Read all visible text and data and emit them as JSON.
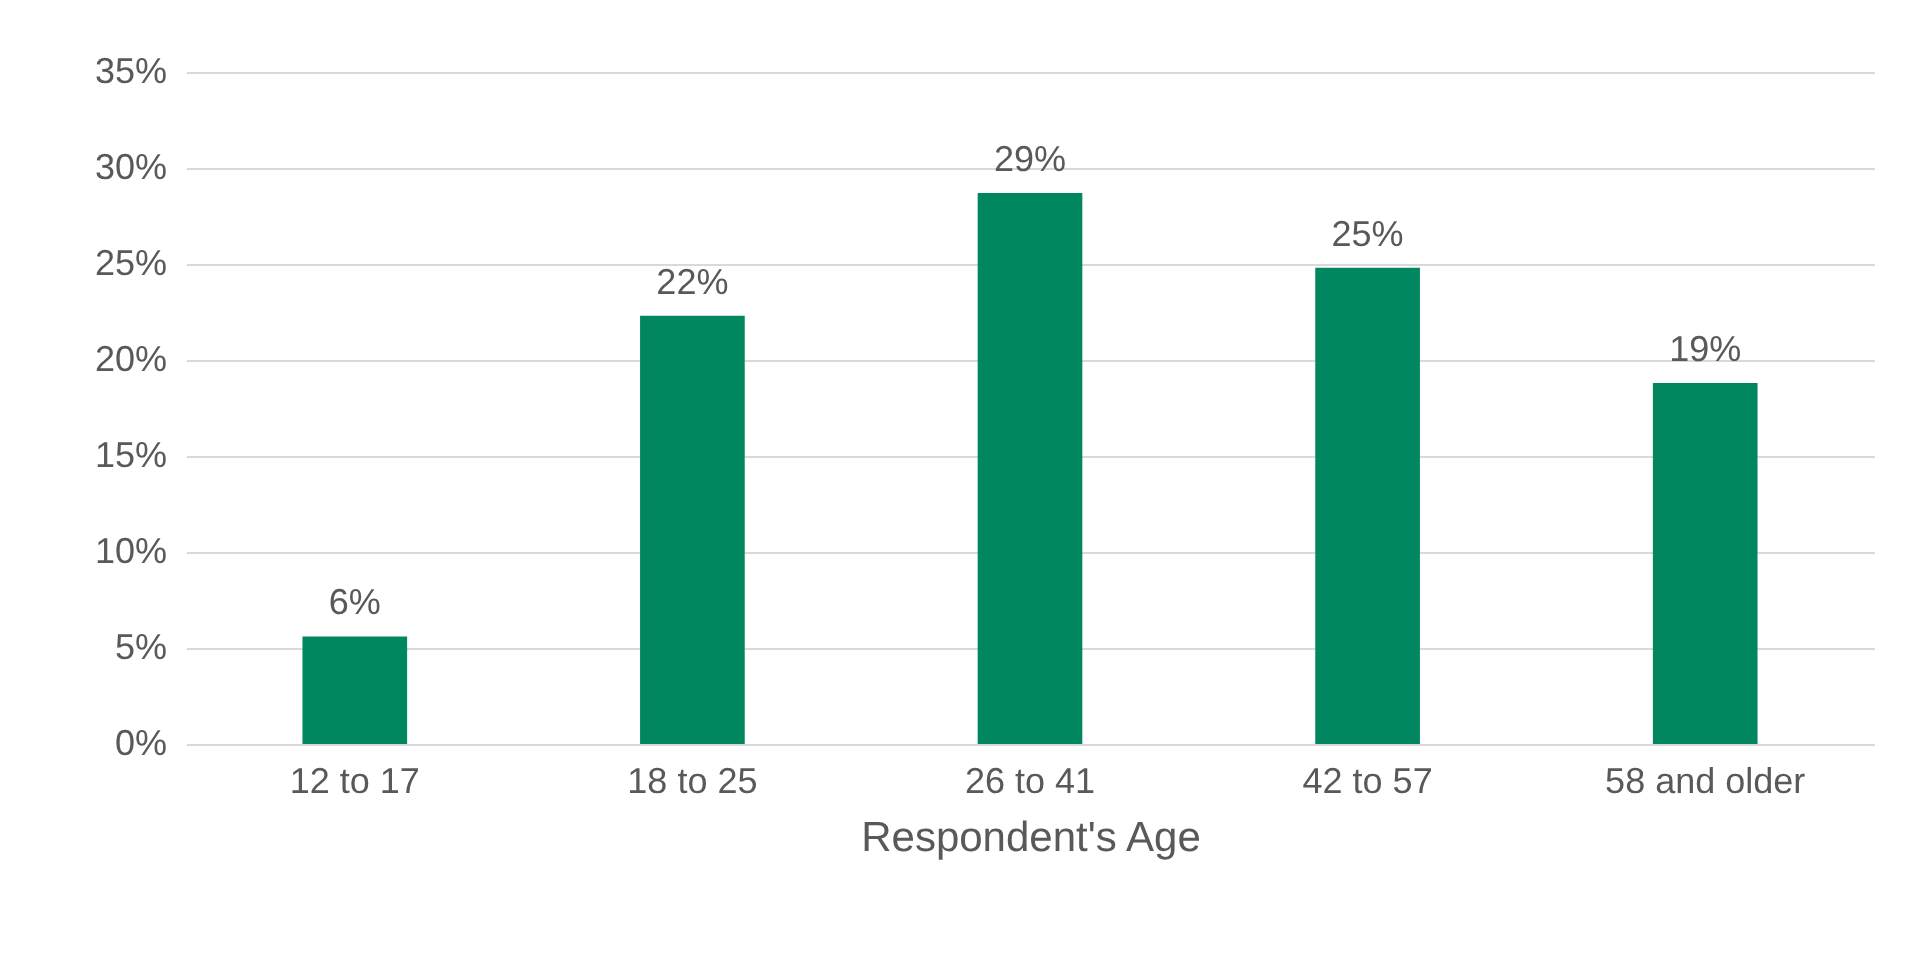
{
  "chart_data": {
    "type": "bar",
    "xlabel": "Respondent's Age",
    "categories": [
      "12 to 17",
      "18 to 25",
      "26 to 41",
      "42 to 57",
      "58 and older"
    ],
    "values": [
      5.6,
      22.3,
      28.7,
      24.8,
      18.8
    ],
    "value_labels": [
      "6%",
      "22%",
      "29%",
      "25%",
      "19%"
    ],
    "color": "#00875f",
    "ylim": [
      0,
      35
    ],
    "yticks": [
      {
        "value": 0,
        "label": "0%"
      },
      {
        "value": 5,
        "label": "5%"
      },
      {
        "value": 10,
        "label": "10%"
      },
      {
        "value": 15,
        "label": "15%"
      },
      {
        "value": 20,
        "label": "20%"
      },
      {
        "value": 25,
        "label": "25%"
      },
      {
        "value": 30,
        "label": "30%"
      },
      {
        "value": 35,
        "label": "35%"
      }
    ],
    "grid": "y"
  }
}
